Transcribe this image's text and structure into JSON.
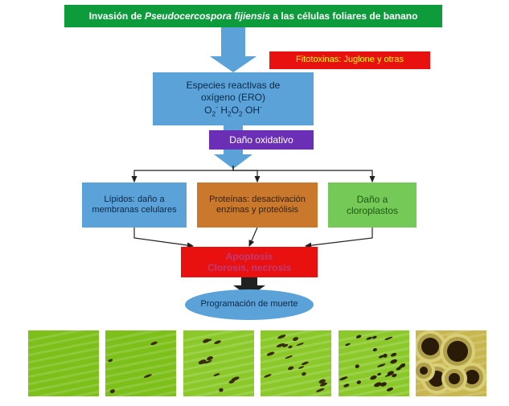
{
  "title": {
    "text_prefix": "Invasión de ",
    "text_italic": "Pseudocercospora fijiensis",
    "text_suffix": " a las células foliares de banano",
    "bg": "#0d9b3c",
    "fg": "#ffffff",
    "fontsize": 12,
    "weight": "bold"
  },
  "fitotoxins": {
    "text": "Fitotoxinas: Juglone y otras",
    "bg": "#e8110f",
    "fg": "#ffff00",
    "fontsize": 11
  },
  "ero": {
    "line1": "Especies reactivas de",
    "line2": "oxígeno (ERO)",
    "line3_html": "O<span class='sub'>2</span><span class='sup'>-</span> H<span class='sub'>2</span>O<span class='sub'>2</span> OH<span class='sup'>-</span>",
    "bg": "#5aa2d7",
    "fg": "#0a2a4a",
    "fontsize": 12
  },
  "dano_ox": {
    "text": "Daño oxidativo",
    "bg": "#6b2fb5",
    "fg": "#ffffff",
    "fontsize": 12
  },
  "lipids": {
    "text": "Lípidos: daño a membranas celulares",
    "bg": "#5aa2d7",
    "fg": "#0a2a4a",
    "fontsize": 11
  },
  "proteins": {
    "text": "Proteínas: desactivación enzimas y proteólisis",
    "bg": "#c9782c",
    "fg": "#3a1f08",
    "fontsize": 11
  },
  "chloro": {
    "text": "Daño a cloroplastos",
    "bg": "#74c957",
    "fg": "#1d5a12",
    "fontsize": 12
  },
  "apoptosis": {
    "line1": "Apoptosis",
    "line2": "Clorosis, necrosis",
    "bg": "#e8110f",
    "fg": "#c03a78",
    "fontsize": 12,
    "weight": "bold"
  },
  "death": {
    "text": "Programación de muerte",
    "bg": "#5aa2d7",
    "fg": "#0a2a4a",
    "fontsize": 11
  },
  "arrows": {
    "big_fill": "#5aa2d7",
    "thin_stroke": "#212121",
    "thin_width": 1.2
  },
  "leaves": [
    {
      "base": "#7cc019",
      "spot_count": 0,
      "spot_color": "#3a2a10",
      "necrosis": false
    },
    {
      "base": "#7cc019",
      "spot_count": 4,
      "spot_color": "#3a2a10",
      "necrosis": false
    },
    {
      "base": "#8bc92b",
      "spot_count": 10,
      "spot_color": "#3a2a10",
      "necrosis": false
    },
    {
      "base": "#8bc92b",
      "spot_count": 16,
      "spot_color": "#3a2a10",
      "necrosis": false
    },
    {
      "base": "#8bc92b",
      "spot_count": 26,
      "spot_color": "#2e2208",
      "necrosis": false
    },
    {
      "base": "#c8b74f",
      "spot_count": 6,
      "spot_color": "#2a1a08",
      "necrosis": true
    }
  ]
}
